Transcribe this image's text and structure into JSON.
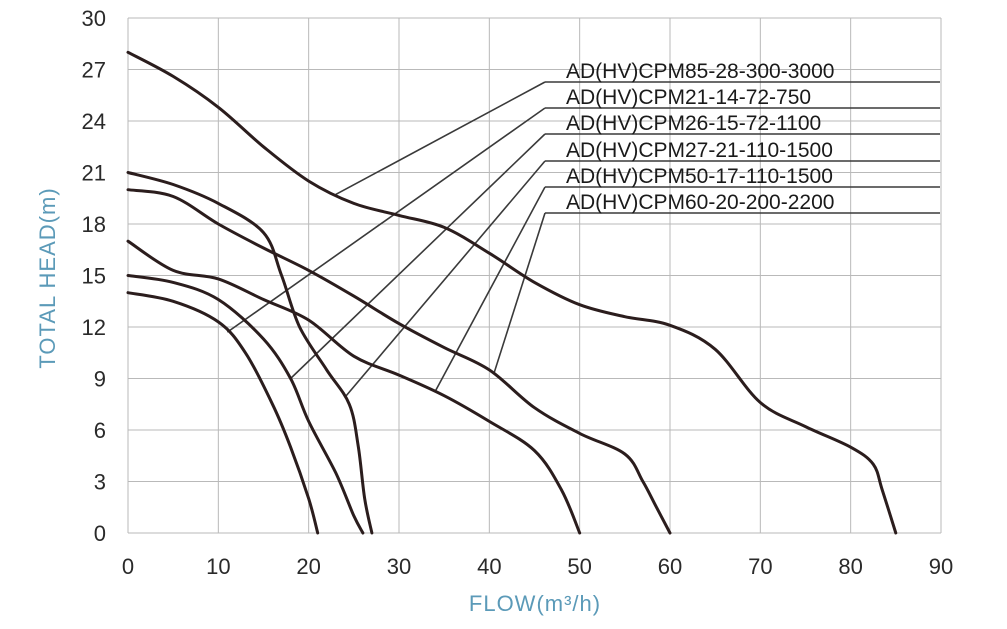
{
  "chart_data": {
    "type": "line",
    "xlabel": "FLOW(m³/h)",
    "ylabel": "TOTAL HEAD(m)",
    "xlim": [
      0,
      90
    ],
    "ylim": [
      0,
      30
    ],
    "x_ticks": [
      0,
      10,
      20,
      30,
      40,
      50,
      60,
      70,
      80,
      90
    ],
    "y_ticks": [
      0,
      3,
      6,
      9,
      12,
      15,
      18,
      21,
      24,
      27,
      30
    ],
    "grid": true,
    "legend_placement": "top-right",
    "colors": {
      "curve": "#2b1d1d",
      "axis_label": "#5b9ab8",
      "grid": "#b9b9b9"
    },
    "series": [
      {
        "name": "AD(HV)CPM85-28-300-3000",
        "points": [
          [
            0,
            28
          ],
          [
            5,
            26.6
          ],
          [
            10,
            24.8
          ],
          [
            15,
            22.5
          ],
          [
            20,
            20.5
          ],
          [
            25,
            19.2
          ],
          [
            30,
            18.5
          ],
          [
            35,
            17.8
          ],
          [
            40,
            16.3
          ],
          [
            45,
            14.6
          ],
          [
            50,
            13.3
          ],
          [
            55,
            12.6
          ],
          [
            60,
            12.1
          ],
          [
            65,
            10.7
          ],
          [
            70,
            7.6
          ],
          [
            75,
            6.2
          ],
          [
            80,
            5.0
          ],
          [
            82.5,
            4.0
          ],
          [
            83.5,
            2.5
          ],
          [
            85,
            0
          ]
        ]
      },
      {
        "name": "AD(HV)CPM21-14-72-750",
        "points": [
          [
            0,
            14
          ],
          [
            5,
            13.5
          ],
          [
            10,
            12.3
          ],
          [
            13,
            10.5
          ],
          [
            16,
            7.5
          ],
          [
            18,
            5
          ],
          [
            20,
            2
          ],
          [
            21,
            0
          ]
        ]
      },
      {
        "name": "AD(HV)CPM26-15-72-1100",
        "points": [
          [
            0,
            15
          ],
          [
            5,
            14.6
          ],
          [
            10,
            13.6
          ],
          [
            15,
            11.3
          ],
          [
            18,
            9
          ],
          [
            20,
            6.5
          ],
          [
            23,
            3.5
          ],
          [
            25,
            1
          ],
          [
            26,
            0
          ]
        ]
      },
      {
        "name": "AD(HV)CPM27-21-110-1500",
        "points": [
          [
            0,
            21
          ],
          [
            5,
            20.3
          ],
          [
            10,
            19.2
          ],
          [
            15,
            17.5
          ],
          [
            17,
            15
          ],
          [
            19,
            12
          ],
          [
            22,
            9.5
          ],
          [
            24.5,
            7.5
          ],
          [
            25.5,
            5
          ],
          [
            26.2,
            2
          ],
          [
            27,
            0
          ]
        ]
      },
      {
        "name": "AD(HV)CPM50-17-110-1500",
        "points": [
          [
            0,
            17
          ],
          [
            5,
            15.3
          ],
          [
            10,
            14.8
          ],
          [
            15,
            13.6
          ],
          [
            20,
            12.4
          ],
          [
            25,
            10.3
          ],
          [
            30,
            9.2
          ],
          [
            35,
            8
          ],
          [
            40,
            6.5
          ],
          [
            45,
            4.8
          ],
          [
            48,
            2.5
          ],
          [
            50,
            0
          ]
        ]
      },
      {
        "name": "AD(HV)CPM60-20-200-2200",
        "points": [
          [
            0,
            20
          ],
          [
            5,
            19.6
          ],
          [
            10,
            18
          ],
          [
            15,
            16.6
          ],
          [
            20,
            15.3
          ],
          [
            25,
            13.8
          ],
          [
            30,
            12.2
          ],
          [
            35,
            10.8
          ],
          [
            40,
            9.5
          ],
          [
            45,
            7.3
          ],
          [
            50,
            5.8
          ],
          [
            55,
            4.6
          ],
          [
            57,
            3
          ],
          [
            58.5,
            1.5
          ],
          [
            60,
            0
          ]
        ]
      }
    ]
  }
}
